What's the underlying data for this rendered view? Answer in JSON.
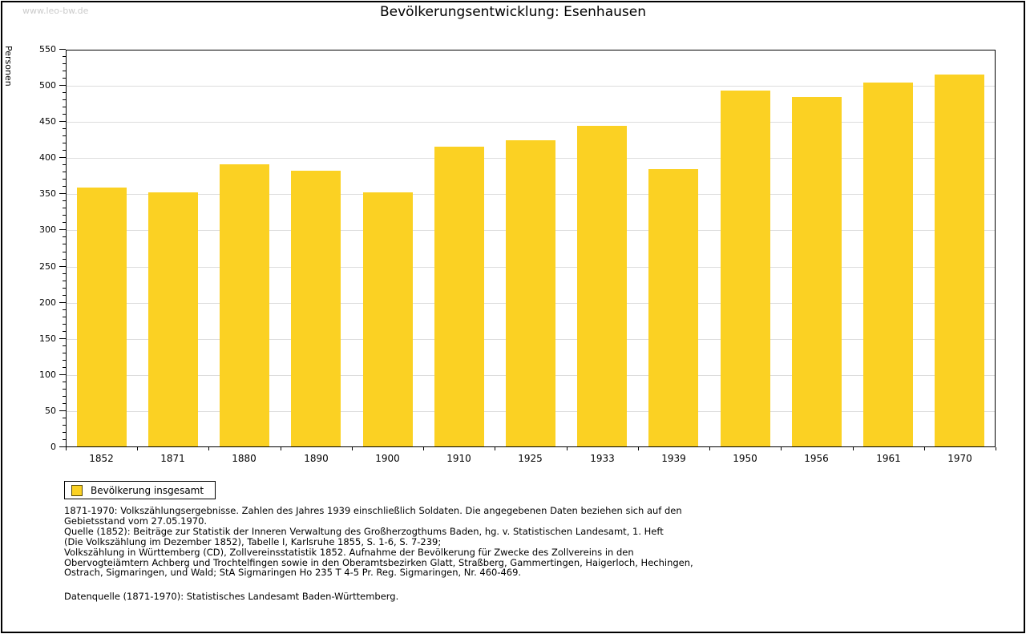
{
  "page": {
    "watermark": "www.leo-bw.de",
    "title": "Bevölkerungsentwicklung: Esenhausen"
  },
  "chart_data": {
    "type": "bar",
    "title": "Bevölkerungsentwicklung: Esenhausen",
    "xlabel": "",
    "ylabel": "Personen",
    "categories": [
      "1852",
      "1871",
      "1880",
      "1890",
      "1900",
      "1910",
      "1925",
      "1933",
      "1939",
      "1950",
      "1956",
      "1961",
      "1970"
    ],
    "series": [
      {
        "name": "Bevölkerung insgesamt",
        "values": [
          358,
          351,
          390,
          382,
          352,
          415,
          424,
          444,
          384,
          492,
          484,
          503,
          515
        ]
      }
    ],
    "ylim": [
      0,
      550
    ],
    "ytick_step": 50,
    "yminor_tick_step": 10,
    "grid": "horizontal",
    "bar_color": "#FBD123",
    "grid_color": "#dddddd",
    "legend_position": "bottom-left"
  },
  "legend": {
    "items": [
      {
        "label": "Bevölkerung insgesamt",
        "color": "#FBD123",
        "swatch": "yellow-square-icon"
      }
    ]
  },
  "footer": {
    "lines": [
      "1871-1970: Volkszählungsergebnisse. Zahlen des Jahres 1939 einschließlich Soldaten. Die angegebenen Daten beziehen sich auf den",
      "Gebietsstand vom 27.05.1970.",
      "Quelle (1852): Beiträge zur Statistik der Inneren Verwaltung des Großherzogthums Baden, hg. v. Statistischen Landesamt, 1. Heft",
      "(Die Volkszählung im Dezember 1852), Tabelle I, Karlsruhe 1855, S. 1-6, S. 7-239;",
      "Volkszählung in Württemberg (CD), Zollvereinsstatistik 1852. Aufnahme der Bevölkerung für Zwecke des Zollvereins in den",
      "Obervogteiämtern Achberg und Trochtelfingen sowie in den Oberamtsbezirken Glatt, Straßberg, Gammertingen, Haigerloch, Hechingen,",
      "Ostrach, Sigmaringen, und Wald; StA Sigmaringen Ho 235 T 4-5 Pr. Reg. Sigmaringen, Nr. 460-469."
    ],
    "datasource": "Datenquelle (1871-1970): Statistisches Landesamt Baden-Württemberg."
  }
}
